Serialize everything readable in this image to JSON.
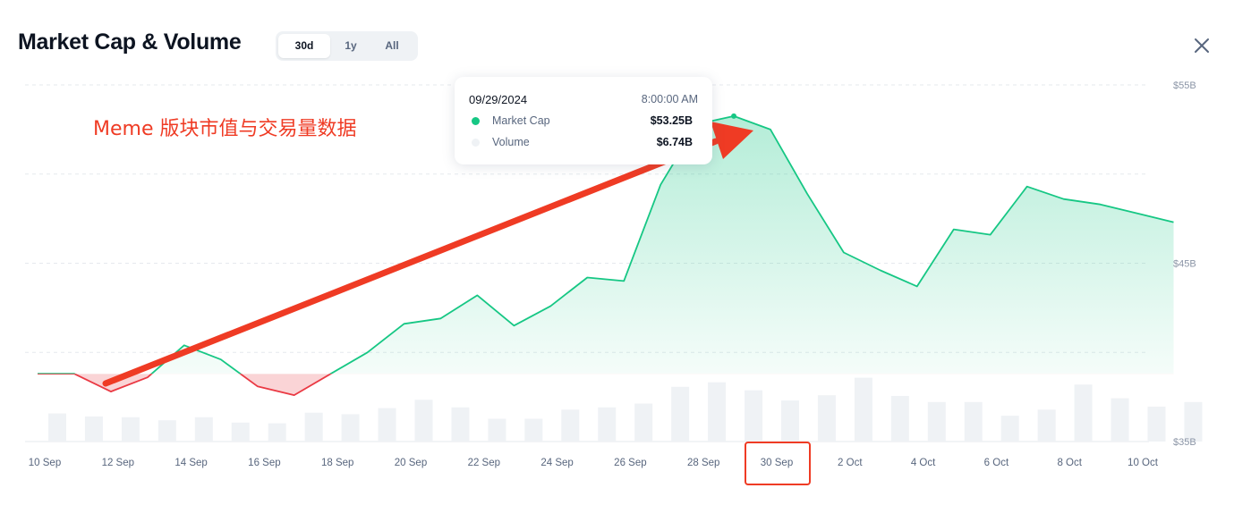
{
  "header": {
    "title": "Market Cap & Volume",
    "ranges": [
      "30d",
      "1y",
      "All"
    ],
    "active_range": "30d"
  },
  "tooltip": {
    "date": "09/29/2024",
    "time": "8:00:00 AM",
    "rows": [
      {
        "label": "Market Cap",
        "value": "$53.25B",
        "color": "#16c784"
      },
      {
        "label": "Volume",
        "value": "$6.74B",
        "color": "#eff2f5"
      }
    ]
  },
  "annotation": {
    "text": "Meme 版块市值与交易量数据",
    "color": "#ef3b24",
    "highlighted_tick": "30 Sep"
  },
  "colors": {
    "up": "#16c784",
    "down": "#ea3943",
    "volume_bar": "#eff2f5",
    "grid": "#e6e9ee"
  },
  "chart_data": {
    "type": "area",
    "x_ticks": [
      "10 Sep",
      "12 Sep",
      "14 Sep",
      "16 Sep",
      "18 Sep",
      "20 Sep",
      "22 Sep",
      "24 Sep",
      "26 Sep",
      "28 Sep",
      "30 Sep",
      "2 Oct",
      "4 Oct",
      "6 Oct",
      "8 Oct",
      "10 Oct"
    ],
    "y_ticks": [
      "$35B",
      "$45B",
      "$55B"
    ],
    "ylim": [
      35,
      55
    ],
    "baseline": 38.8,
    "grid": true,
    "series": [
      {
        "name": "Market Cap",
        "unit": "$B",
        "x": [
          "2024-09-10",
          "2024-09-11",
          "2024-09-12",
          "2024-09-13",
          "2024-09-14",
          "2024-09-15",
          "2024-09-16",
          "2024-09-17",
          "2024-09-18",
          "2024-09-19",
          "2024-09-20",
          "2024-09-21",
          "2024-09-22",
          "2024-09-23",
          "2024-09-24",
          "2024-09-25",
          "2024-09-26",
          "2024-09-27",
          "2024-09-28",
          "2024-09-29",
          "2024-09-30",
          "2024-10-01",
          "2024-10-02",
          "2024-10-03",
          "2024-10-04",
          "2024-10-05",
          "2024-10-06",
          "2024-10-07",
          "2024-10-08",
          "2024-10-09",
          "2024-10-10",
          "2024-10-11"
        ],
        "values": [
          38.8,
          38.8,
          37.8,
          38.6,
          40.4,
          39.6,
          38.1,
          37.6,
          38.8,
          40.0,
          41.6,
          41.9,
          43.2,
          41.5,
          42.6,
          44.2,
          44.0,
          49.4,
          52.8,
          53.25,
          52.5,
          48.9,
          45.6,
          44.6,
          43.7,
          46.9,
          46.6,
          49.3,
          48.6,
          48.3,
          47.8,
          47.3
        ]
      },
      {
        "name": "Volume",
        "unit": "$B",
        "x": [
          "2024-09-10",
          "2024-09-11",
          "2024-09-12",
          "2024-09-13",
          "2024-09-14",
          "2024-09-15",
          "2024-09-16",
          "2024-09-17",
          "2024-09-18",
          "2024-09-19",
          "2024-09-20",
          "2024-09-21",
          "2024-09-22",
          "2024-09-23",
          "2024-09-24",
          "2024-09-25",
          "2024-09-26",
          "2024-09-27",
          "2024-09-28",
          "2024-09-29",
          "2024-09-30",
          "2024-10-01",
          "2024-10-02",
          "2024-10-03",
          "2024-10-04",
          "2024-10-05",
          "2024-10-06",
          "2024-10-07",
          "2024-10-08",
          "2024-10-09",
          "2024-10-10",
          "2024-10-11"
        ],
        "values": [
          3.7,
          3.3,
          3.2,
          2.8,
          3.2,
          2.5,
          2.4,
          3.8,
          3.6,
          4.4,
          5.5,
          4.5,
          3.0,
          3.0,
          4.2,
          4.5,
          5.0,
          7.2,
          7.8,
          6.74,
          5.4,
          6.1,
          8.4,
          6.0,
          5.2,
          5.2,
          3.4,
          4.2,
          7.5,
          5.7,
          4.6,
          5.2
        ]
      }
    ]
  }
}
